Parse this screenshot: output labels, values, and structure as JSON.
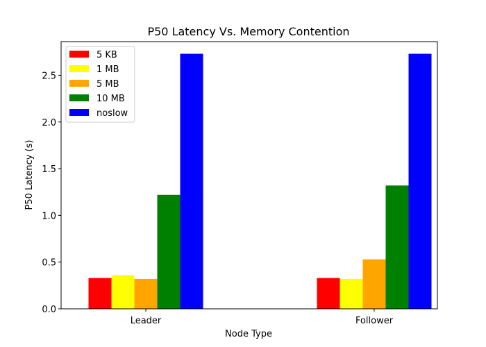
{
  "chart_data": {
    "type": "bar",
    "title": "P50 Latency Vs. Memory Contention",
    "xlabel": "Node Type",
    "ylabel": "P50 Latency (s)",
    "categories": [
      "Leader",
      "Follower"
    ],
    "series": [
      {
        "name": "5 KB",
        "color": "#ff0000",
        "values": [
          0.33,
          0.33
        ]
      },
      {
        "name": "1 MB",
        "color": "#ffff00",
        "values": [
          0.36,
          0.32
        ]
      },
      {
        "name": "5 MB",
        "color": "#ffa500",
        "values": [
          0.32,
          0.53
        ]
      },
      {
        "name": "10 MB",
        "color": "#008000",
        "values": [
          1.22,
          1.32
        ]
      },
      {
        "name": "noslow",
        "color": "#0000ff",
        "values": [
          2.73,
          2.73
        ]
      }
    ],
    "ylim": [
      0,
      2.86
    ],
    "yticks": [
      0.0,
      0.5,
      1.0,
      1.5,
      2.0,
      2.5
    ],
    "ytick_labels": [
      "0.0",
      "0.5",
      "1.0",
      "1.5",
      "2.0",
      "2.5"
    ],
    "grid": false,
    "legend_position": "top-left"
  }
}
